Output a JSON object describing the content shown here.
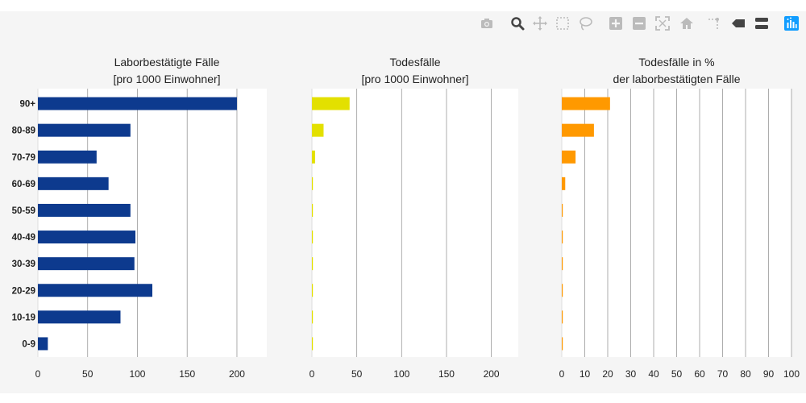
{
  "toolbar": {
    "buttons": [
      {
        "icon": "camera-icon",
        "label": "Download plot as a png"
      },
      {
        "icon": "zoom-icon",
        "label": "Zoom"
      },
      {
        "icon": "pan-icon",
        "label": "Pan"
      },
      {
        "icon": "box-select-icon",
        "label": "Box Select"
      },
      {
        "icon": "lasso-select-icon",
        "label": "Lasso Select"
      },
      {
        "icon": "zoom-in-icon",
        "label": "Zoom in"
      },
      {
        "icon": "zoom-out-icon",
        "label": "Zoom out"
      },
      {
        "icon": "autoscale-icon",
        "label": "Autoscale"
      },
      {
        "icon": "home-icon",
        "label": "Reset axes"
      },
      {
        "icon": "spike-lines-icon",
        "label": "Toggle Spike Lines"
      },
      {
        "icon": "hover-closest-icon",
        "label": "Show closest data on hover"
      },
      {
        "icon": "hover-compare-icon",
        "label": "Compare data on hover"
      },
      {
        "icon": "plotly-logo-icon",
        "label": "Produced with Plotly"
      }
    ],
    "active_color": "#444444",
    "inactive_color": "#bbbbbb",
    "logo_color": "#119dff"
  },
  "chart_data": [
    {
      "type": "bar",
      "orientation": "horizontal",
      "title": "Laborbestätigte Fälle",
      "subtitle": "[pro 1000 Einwohner]",
      "categories": [
        "90+",
        "80-89",
        "70-79",
        "60-69",
        "50-59",
        "40-49",
        "30-39",
        "20-29",
        "10-19",
        "0-9"
      ],
      "values": [
        200,
        93,
        59,
        71,
        93,
        98,
        97,
        115,
        83,
        10
      ],
      "xlim": [
        0,
        230
      ],
      "xticks": [
        0,
        50,
        100,
        150,
        200
      ],
      "color": "#0d3a8e",
      "grid": true
    },
    {
      "type": "bar",
      "orientation": "horizontal",
      "title": "Todesfälle",
      "subtitle": "[pro 1000 Einwohner]",
      "categories": [
        "90+",
        "80-89",
        "70-79",
        "60-69",
        "50-59",
        "40-49",
        "30-39",
        "20-29",
        "10-19",
        "0-9"
      ],
      "values": [
        42,
        13,
        3.5,
        1,
        0.2,
        0.05,
        0.02,
        0.01,
        0,
        0
      ],
      "xlim": [
        0,
        230
      ],
      "xticks": [
        0,
        50,
        100,
        150,
        200
      ],
      "color": "#e3e000",
      "grid": true
    },
    {
      "type": "bar",
      "orientation": "horizontal",
      "title": "Todesfälle in %",
      "subtitle": "der laborbestätigten Fälle",
      "categories": [
        "90+",
        "80-89",
        "70-79",
        "60-69",
        "50-59",
        "40-49",
        "30-39",
        "20-29",
        "10-19",
        "0-9"
      ],
      "values": [
        21,
        14,
        6,
        1.5,
        0.3,
        0.05,
        0.02,
        0.01,
        0,
        0.1
      ],
      "xlim": [
        0,
        100
      ],
      "xticks": [
        0,
        10,
        20,
        30,
        40,
        50,
        60,
        70,
        80,
        90,
        100
      ],
      "color": "#ff9900",
      "grid": true
    }
  ]
}
